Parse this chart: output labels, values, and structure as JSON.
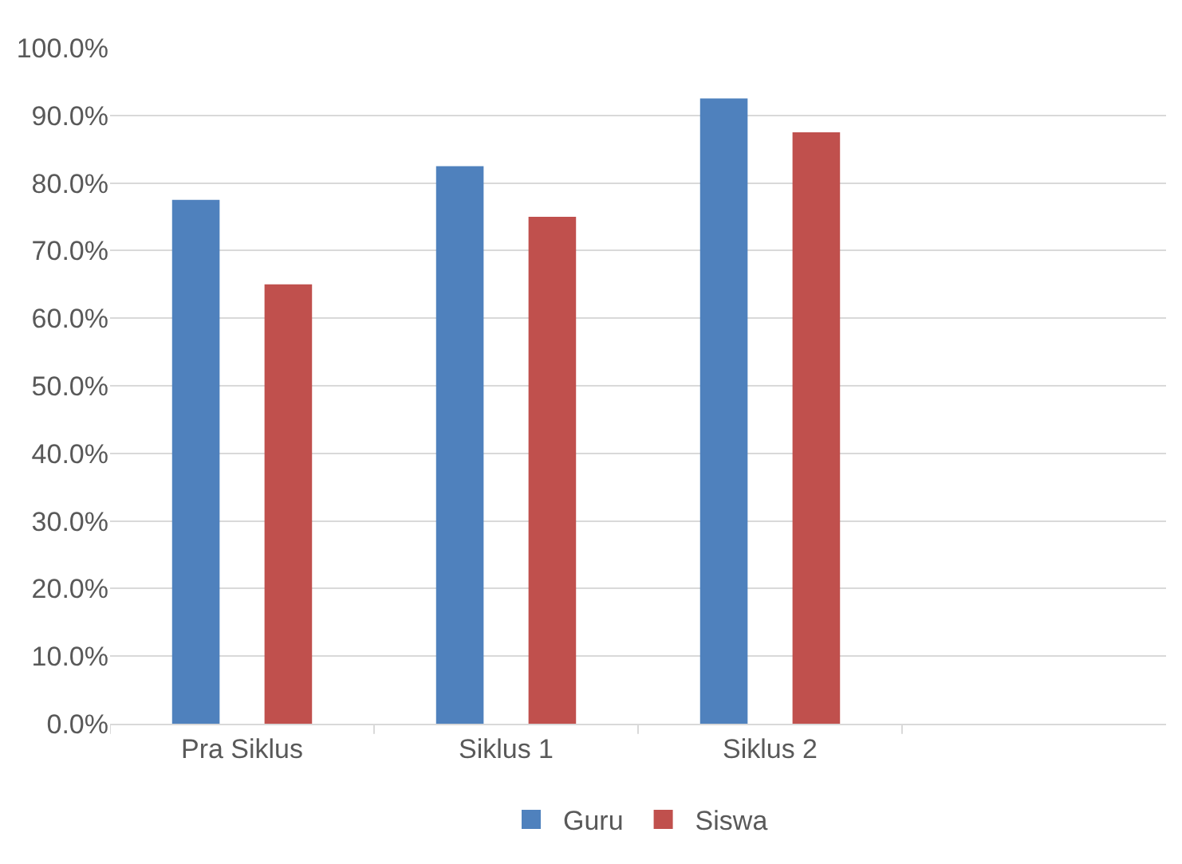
{
  "chart_data": {
    "type": "bar",
    "categories": [
      "Pra Siklus",
      "Siklus 1",
      "Siklus 2",
      null
    ],
    "series": [
      {
        "name": "Guru",
        "color": "#4f81bd",
        "values": [
          77.5,
          82.5,
          92.5,
          null
        ]
      },
      {
        "name": "Siswa",
        "color": "#c0504d",
        "values": [
          65,
          75,
          87.5,
          null
        ]
      }
    ],
    "ylim": [
      0,
      100
    ],
    "yticks": [
      {
        "value": 0,
        "label": "0.0%"
      },
      {
        "value": 10,
        "label": "10.0%"
      },
      {
        "value": 20,
        "label": "20.0%"
      },
      {
        "value": 30,
        "label": "30.0%"
      },
      {
        "value": 40,
        "label": "40.0%"
      },
      {
        "value": 50,
        "label": "50.0%"
      },
      {
        "value": 60,
        "label": "60.0%"
      },
      {
        "value": 70,
        "label": "70.0%"
      },
      {
        "value": 80,
        "label": "80.0%"
      },
      {
        "value": 90,
        "label": "90.0%"
      },
      {
        "value": 100,
        "label": "100.0%"
      }
    ],
    "grid": "y",
    "legend": "bottom"
  }
}
